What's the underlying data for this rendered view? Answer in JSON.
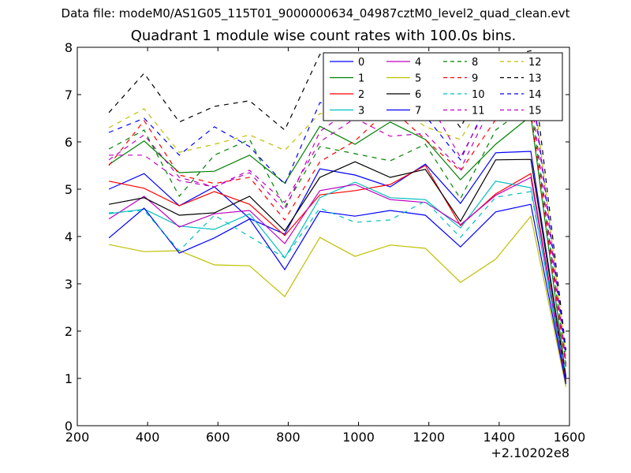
{
  "suptitle": "Data file: modeM0/AS1G05_115T01_9000000634_04987cztM0_level2_quad_clean.evt",
  "chart_data": {
    "type": "line",
    "title": "Quadrant 1 module wise count rates with 100.0s bins.",
    "xlabel": "",
    "ylabel": "",
    "x_offset_label": "+2.10202e8",
    "xlim": [
      200,
      1600
    ],
    "ylim": [
      0,
      8
    ],
    "xticks": [
      200,
      400,
      600,
      800,
      1000,
      1200,
      1400,
      1600
    ],
    "yticks": [
      0,
      1,
      2,
      3,
      4,
      5,
      6,
      7,
      8
    ],
    "legend_position": "top-right",
    "legend_columns": 4,
    "x": [
      290,
      390,
      490,
      590,
      690,
      790,
      890,
      990,
      1090,
      1190,
      1290,
      1390,
      1490,
      1590
    ],
    "series": [
      {
        "name": "0",
        "color": "#0000ff",
        "dash": "solid",
        "values": [
          5.0,
          5.33,
          4.65,
          5.05,
          4.38,
          4.05,
          5.43,
          5.3,
          5.05,
          5.53,
          4.7,
          5.77,
          5.8,
          1.0
        ]
      },
      {
        "name": "1",
        "color": "#008000",
        "dash": "solid",
        "values": [
          5.52,
          6.02,
          5.35,
          5.38,
          5.72,
          5.13,
          6.33,
          5.95,
          6.42,
          6.05,
          5.2,
          5.95,
          6.55,
          1.05
        ]
      },
      {
        "name": "2",
        "color": "#ff0000",
        "dash": "solid",
        "values": [
          5.17,
          5.02,
          4.65,
          4.95,
          4.68,
          4.02,
          4.88,
          4.97,
          5.1,
          5.5,
          4.23,
          4.9,
          5.33,
          0.95
        ]
      },
      {
        "name": "3",
        "color": "#00bfbf",
        "dash": "solid",
        "values": [
          4.48,
          4.58,
          4.22,
          4.15,
          4.48,
          3.55,
          4.82,
          5.15,
          4.82,
          4.78,
          4.18,
          5.17,
          5.03,
          0.9
        ]
      },
      {
        "name": "4",
        "color": "#bf00bf",
        "dash": "solid",
        "values": [
          4.37,
          4.85,
          4.2,
          4.48,
          4.55,
          3.85,
          4.97,
          5.1,
          4.78,
          4.72,
          4.25,
          4.87,
          5.25,
          0.92
        ]
      },
      {
        "name": "5",
        "color": "#bfbf00",
        "dash": "solid",
        "values": [
          3.83,
          3.68,
          3.7,
          3.4,
          3.38,
          2.73,
          3.98,
          3.58,
          3.82,
          3.75,
          3.03,
          3.52,
          4.43,
          0.82
        ]
      },
      {
        "name": "6",
        "color": "#000000",
        "dash": "solid",
        "values": [
          4.68,
          4.82,
          4.45,
          4.5,
          4.85,
          4.12,
          5.25,
          5.58,
          5.25,
          5.42,
          4.32,
          5.62,
          5.63,
          1.02
        ]
      },
      {
        "name": "7",
        "color": "#0000ff",
        "dash": "solid",
        "values": [
          3.97,
          4.6,
          3.65,
          3.97,
          4.37,
          3.3,
          4.53,
          4.43,
          4.55,
          4.45,
          3.78,
          4.52,
          4.68,
          0.88
        ]
      },
      {
        "name": "8",
        "color": "#008000",
        "dash": "dashed",
        "values": [
          5.85,
          6.25,
          4.85,
          5.72,
          6.05,
          4.62,
          5.9,
          5.75,
          5.6,
          5.95,
          4.8,
          6.25,
          6.8,
          1.3
        ]
      },
      {
        "name": "9",
        "color": "#ff0000",
        "dash": "dashed",
        "values": [
          5.5,
          6.45,
          5.3,
          5.12,
          5.25,
          4.35,
          5.58,
          6.02,
          6.72,
          6.05,
          5.38,
          6.47,
          6.63,
          1.25
        ]
      },
      {
        "name": "10",
        "color": "#00bfbf",
        "dash": "dashed",
        "values": [
          4.5,
          4.55,
          3.7,
          4.45,
          4.0,
          3.55,
          4.6,
          4.3,
          4.35,
          4.75,
          3.98,
          4.83,
          4.95,
          1.1
        ]
      },
      {
        "name": "11",
        "color": "#bf00bf",
        "dash": "dashed",
        "values": [
          5.72,
          5.72,
          5.18,
          5.05,
          5.4,
          4.72,
          6.0,
          6.5,
          6.12,
          6.18,
          5.42,
          6.95,
          7.0,
          1.3
        ]
      },
      {
        "name": "12",
        "color": "#bfbf00",
        "dash": "dashed",
        "values": [
          6.3,
          6.7,
          5.78,
          5.95,
          6.15,
          5.82,
          6.6,
          6.55,
          6.87,
          6.32,
          6.05,
          7.32,
          7.57,
          1.45
        ]
      },
      {
        "name": "13",
        "color": "#000000",
        "dash": "dashed",
        "values": [
          6.62,
          7.45,
          6.42,
          6.75,
          6.87,
          6.25,
          7.85,
          7.65,
          7.25,
          7.32,
          6.3,
          7.73,
          7.93,
          1.6
        ]
      },
      {
        "name": "14",
        "color": "#0000ff",
        "dash": "dashed",
        "values": [
          6.2,
          6.5,
          5.72,
          6.32,
          5.9,
          5.1,
          6.83,
          6.72,
          7.02,
          6.55,
          5.62,
          7.2,
          7.42,
          1.5
        ]
      },
      {
        "name": "15",
        "color": "#bf00bf",
        "dash": "dashed",
        "values": [
          5.62,
          6.15,
          5.25,
          5.05,
          5.35,
          4.55,
          6.22,
          6.75,
          7.05,
          6.98,
          5.67,
          7.07,
          7.35,
          1.35
        ]
      }
    ]
  }
}
